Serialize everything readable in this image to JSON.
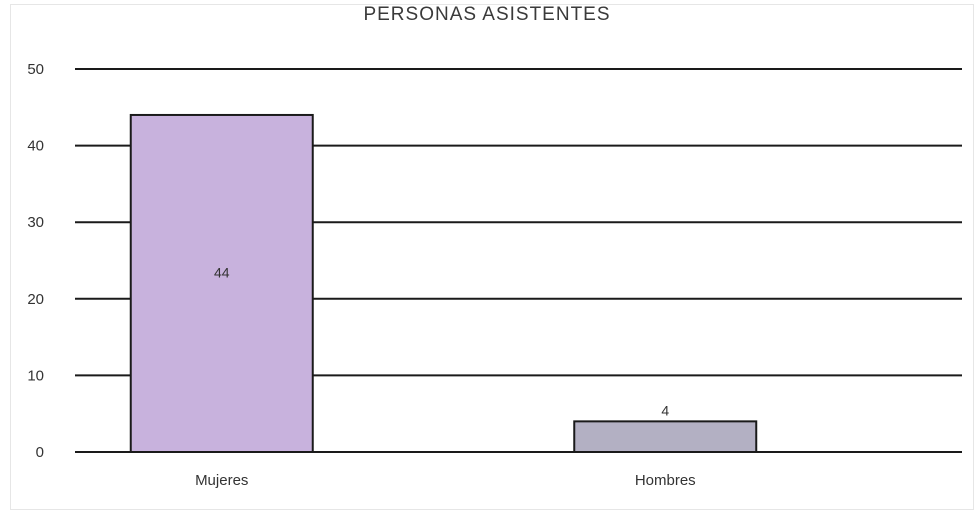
{
  "chart_data": {
    "type": "bar",
    "title": "PERSONAS ASISTENTES",
    "categories": [
      "Mujeres",
      "Hombres"
    ],
    "values": [
      44,
      4
    ],
    "data_labels": [
      "44",
      "4"
    ],
    "ylim": [
      0,
      50
    ],
    "yticks": [
      0,
      10,
      20,
      30,
      40,
      50
    ],
    "ytick_labels": [
      "0",
      "10",
      "20",
      "30",
      "40",
      "50"
    ],
    "bar_colors": [
      "#c8b2dd",
      "#b3b0c3"
    ],
    "grid": true,
    "legend": "none"
  }
}
